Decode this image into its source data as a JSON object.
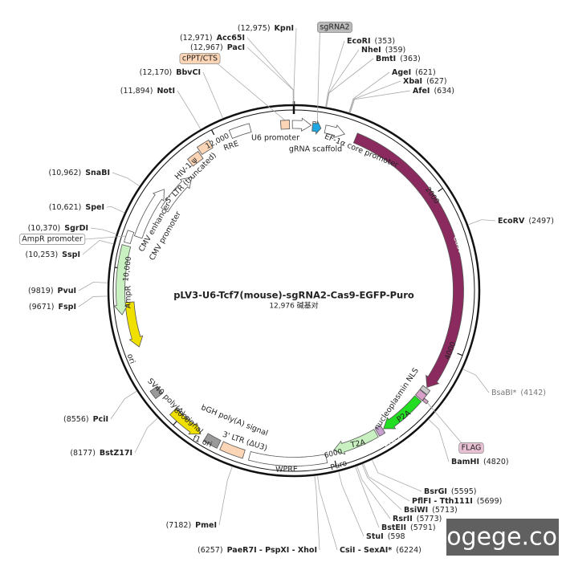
{
  "title": "pLV3-U6-Tcf7(mouse)-sgRNA2-Cas9-EGFP-Puro",
  "length": "12,976 碱基对",
  "ticks": [
    "2000",
    "4000",
    "6000",
    "8000",
    "10,000",
    "12,000"
  ],
  "sites": [
    {
      "name": "KpnI",
      "position": "(12,975)"
    },
    {
      "name": "Acc65I",
      "position": "(12,971)"
    },
    {
      "name": "PacI",
      "position": "(12,967)"
    },
    {
      "name": "BbvCI",
      "position": "(12,170)"
    },
    {
      "name": "NotI",
      "position": "(11,894)"
    },
    {
      "name": "SnaBI",
      "position": "(10,962)"
    },
    {
      "name": "SpeI",
      "position": "(10,621)"
    },
    {
      "name": "SgrDI",
      "position": "(10,370)"
    },
    {
      "name": "SspI",
      "position": "(10,253)"
    },
    {
      "name": "PvuI",
      "position": "(9819)"
    },
    {
      "name": "FspI",
      "position": "(9671)"
    },
    {
      "name": "PciI",
      "position": "(8556)"
    },
    {
      "name": "BstZ17I",
      "position": "(8177)"
    },
    {
      "name": "PmeI",
      "position": "(7182)"
    },
    {
      "name": "PaeR7I - PspXI - XhoI",
      "position": "(6257)"
    },
    {
      "name": "CsiI - SexAI*",
      "position": "(6224)"
    },
    {
      "name": "EcoRI",
      "position": "(353)"
    },
    {
      "name": "NheI",
      "position": "(359)"
    },
    {
      "name": "BmtI",
      "position": "(363)"
    },
    {
      "name": "AgeI",
      "position": "(621)"
    },
    {
      "name": "XbaI",
      "position": "(627)"
    },
    {
      "name": "AfeI",
      "position": "(634)"
    },
    {
      "name": "EcoRV",
      "position": "(2497)"
    },
    {
      "name": "BsaBI*",
      "position": "(4142)"
    },
    {
      "name": "BamHI",
      "position": "(4820)"
    },
    {
      "name": "BsrGI",
      "position": "(5595)"
    },
    {
      "name": "PflFI - Tth111I",
      "position": "(5699)"
    },
    {
      "name": "BsiWI",
      "position": "(5713)"
    },
    {
      "name": "RsrII",
      "position": "(5773)"
    },
    {
      "name": "BstEII",
      "position": "(5791)"
    },
    {
      "name": "StuI",
      "position": "(598"
    }
  ],
  "features": [
    {
      "label": "Cas9"
    },
    {
      "label": "nucleoplasmin NLS"
    },
    {
      "label": "P2A"
    },
    {
      "label": "EGFP"
    },
    {
      "label": "T2A"
    },
    {
      "label": "Puro"
    },
    {
      "label": "WPRE"
    },
    {
      "label": "3' LTR (ΔU3)"
    },
    {
      "label": "bGH poly(A) signal"
    },
    {
      "label": "f1 ori"
    },
    {
      "label": "SV40 poly(A) signal"
    },
    {
      "label": "ori"
    },
    {
      "label": "AmpR"
    },
    {
      "label": "AmpR promoter"
    },
    {
      "label": "CMV promoter"
    },
    {
      "label": "CMV enhancer"
    },
    {
      "label": "5' LTR (truncated)"
    },
    {
      "label": "HIV-1 ψ"
    },
    {
      "label": "RRE"
    },
    {
      "label": "cPPT/CTS"
    },
    {
      "label": "U6 promoter"
    },
    {
      "label": "gRNA scaffold"
    },
    {
      "label": "sgRNA2"
    },
    {
      "label": "EF-1α core promoter"
    },
    {
      "label": "FLAG"
    }
  ],
  "watermark": "blogege.com"
}
